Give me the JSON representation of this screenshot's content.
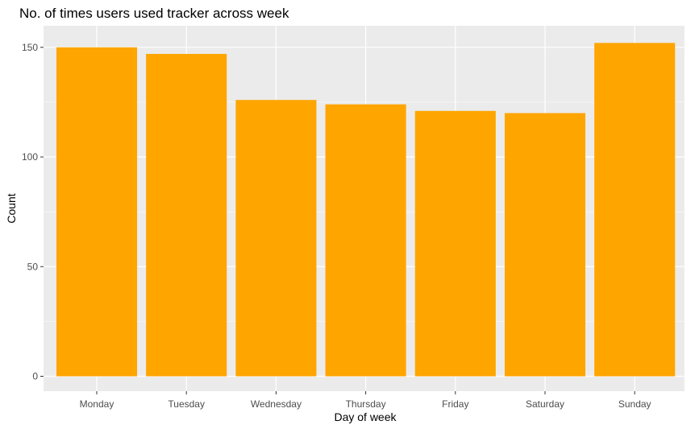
{
  "chart_data": {
    "type": "bar",
    "title": "No. of times users used tracker across week",
    "xlabel": "Day of week",
    "ylabel": "Count",
    "categories": [
      "Monday",
      "Tuesday",
      "Wednesday",
      "Thursday",
      "Friday",
      "Saturday",
      "Sunday"
    ],
    "values": [
      150,
      147,
      126,
      124,
      121,
      120,
      152
    ],
    "ylim": [
      0,
      157.6
    ],
    "yticks": [
      0,
      50,
      100,
      150
    ],
    "ytick_labels": [
      "0",
      "50",
      "100",
      "150"
    ],
    "grid": true,
    "legend": "none",
    "colors": {
      "bar": "#FFA500",
      "panel_background": "#EBEBEB",
      "grid_major": "#FFFFFF",
      "grid_minor": "#F5F5F5"
    }
  }
}
